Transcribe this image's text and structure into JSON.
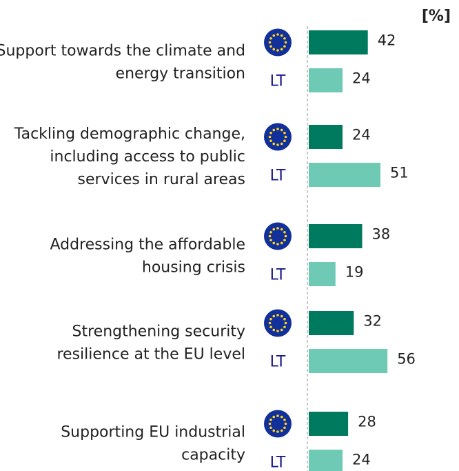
{
  "chart_data": {
    "type": "bar",
    "orientation": "horizontal",
    "unit_label": "[%]",
    "categories": [
      [
        "Support towards the climate and",
        "energy transition"
      ],
      [
        "Tackling demographic change,",
        "including access to public",
        "services in rural areas"
      ],
      [
        "Addressing the affordable",
        "housing crisis"
      ],
      [
        "Strengthening security",
        "resilience at the EU level"
      ],
      [
        "Supporting EU industrial",
        "capacity"
      ]
    ],
    "series": [
      {
        "row_marker": "eu-flag-icon",
        "color": "#007a5e",
        "values": [
          42,
          24,
          38,
          32,
          28
        ]
      },
      {
        "name": "LT",
        "row_marker": "LT",
        "color": "#6fcab5",
        "values": [
          24,
          51,
          19,
          56,
          24
        ]
      }
    ],
    "xlim": [
      0,
      70
    ],
    "axis_line": "dashed-vertical",
    "grid": false
  }
}
